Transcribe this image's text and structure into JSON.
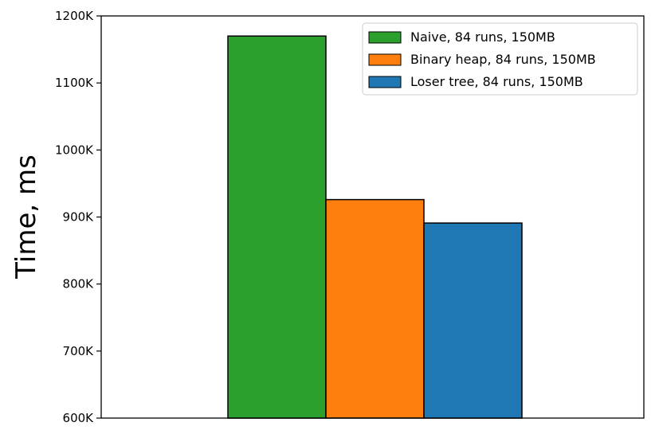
{
  "chart_data": {
    "type": "bar",
    "title": "",
    "xlabel": "",
    "ylabel": "Time, ms",
    "ylim": [
      600000,
      1200000
    ],
    "y_ticks": [
      {
        "value": 600000,
        "label": "600K"
      },
      {
        "value": 700000,
        "label": "700K"
      },
      {
        "value": 800000,
        "label": "800K"
      },
      {
        "value": 900000,
        "label": "900K"
      },
      {
        "value": 1000000,
        "label": "1000K"
      },
      {
        "value": 1100000,
        "label": "1100K"
      },
      {
        "value": 1200000,
        "label": "1200K"
      }
    ],
    "grid": false,
    "legend_position": "top-right",
    "series": [
      {
        "name": "Naive, 84 runs, 150MB",
        "value": 1170000,
        "color": "#2ca02c"
      },
      {
        "name": "Binary heap, 84 runs, 150MB",
        "value": 926000,
        "color": "#ff7f0e"
      },
      {
        "name": "Loser tree, 84 runs, 150MB",
        "value": 891000,
        "color": "#1f77b4"
      }
    ]
  }
}
